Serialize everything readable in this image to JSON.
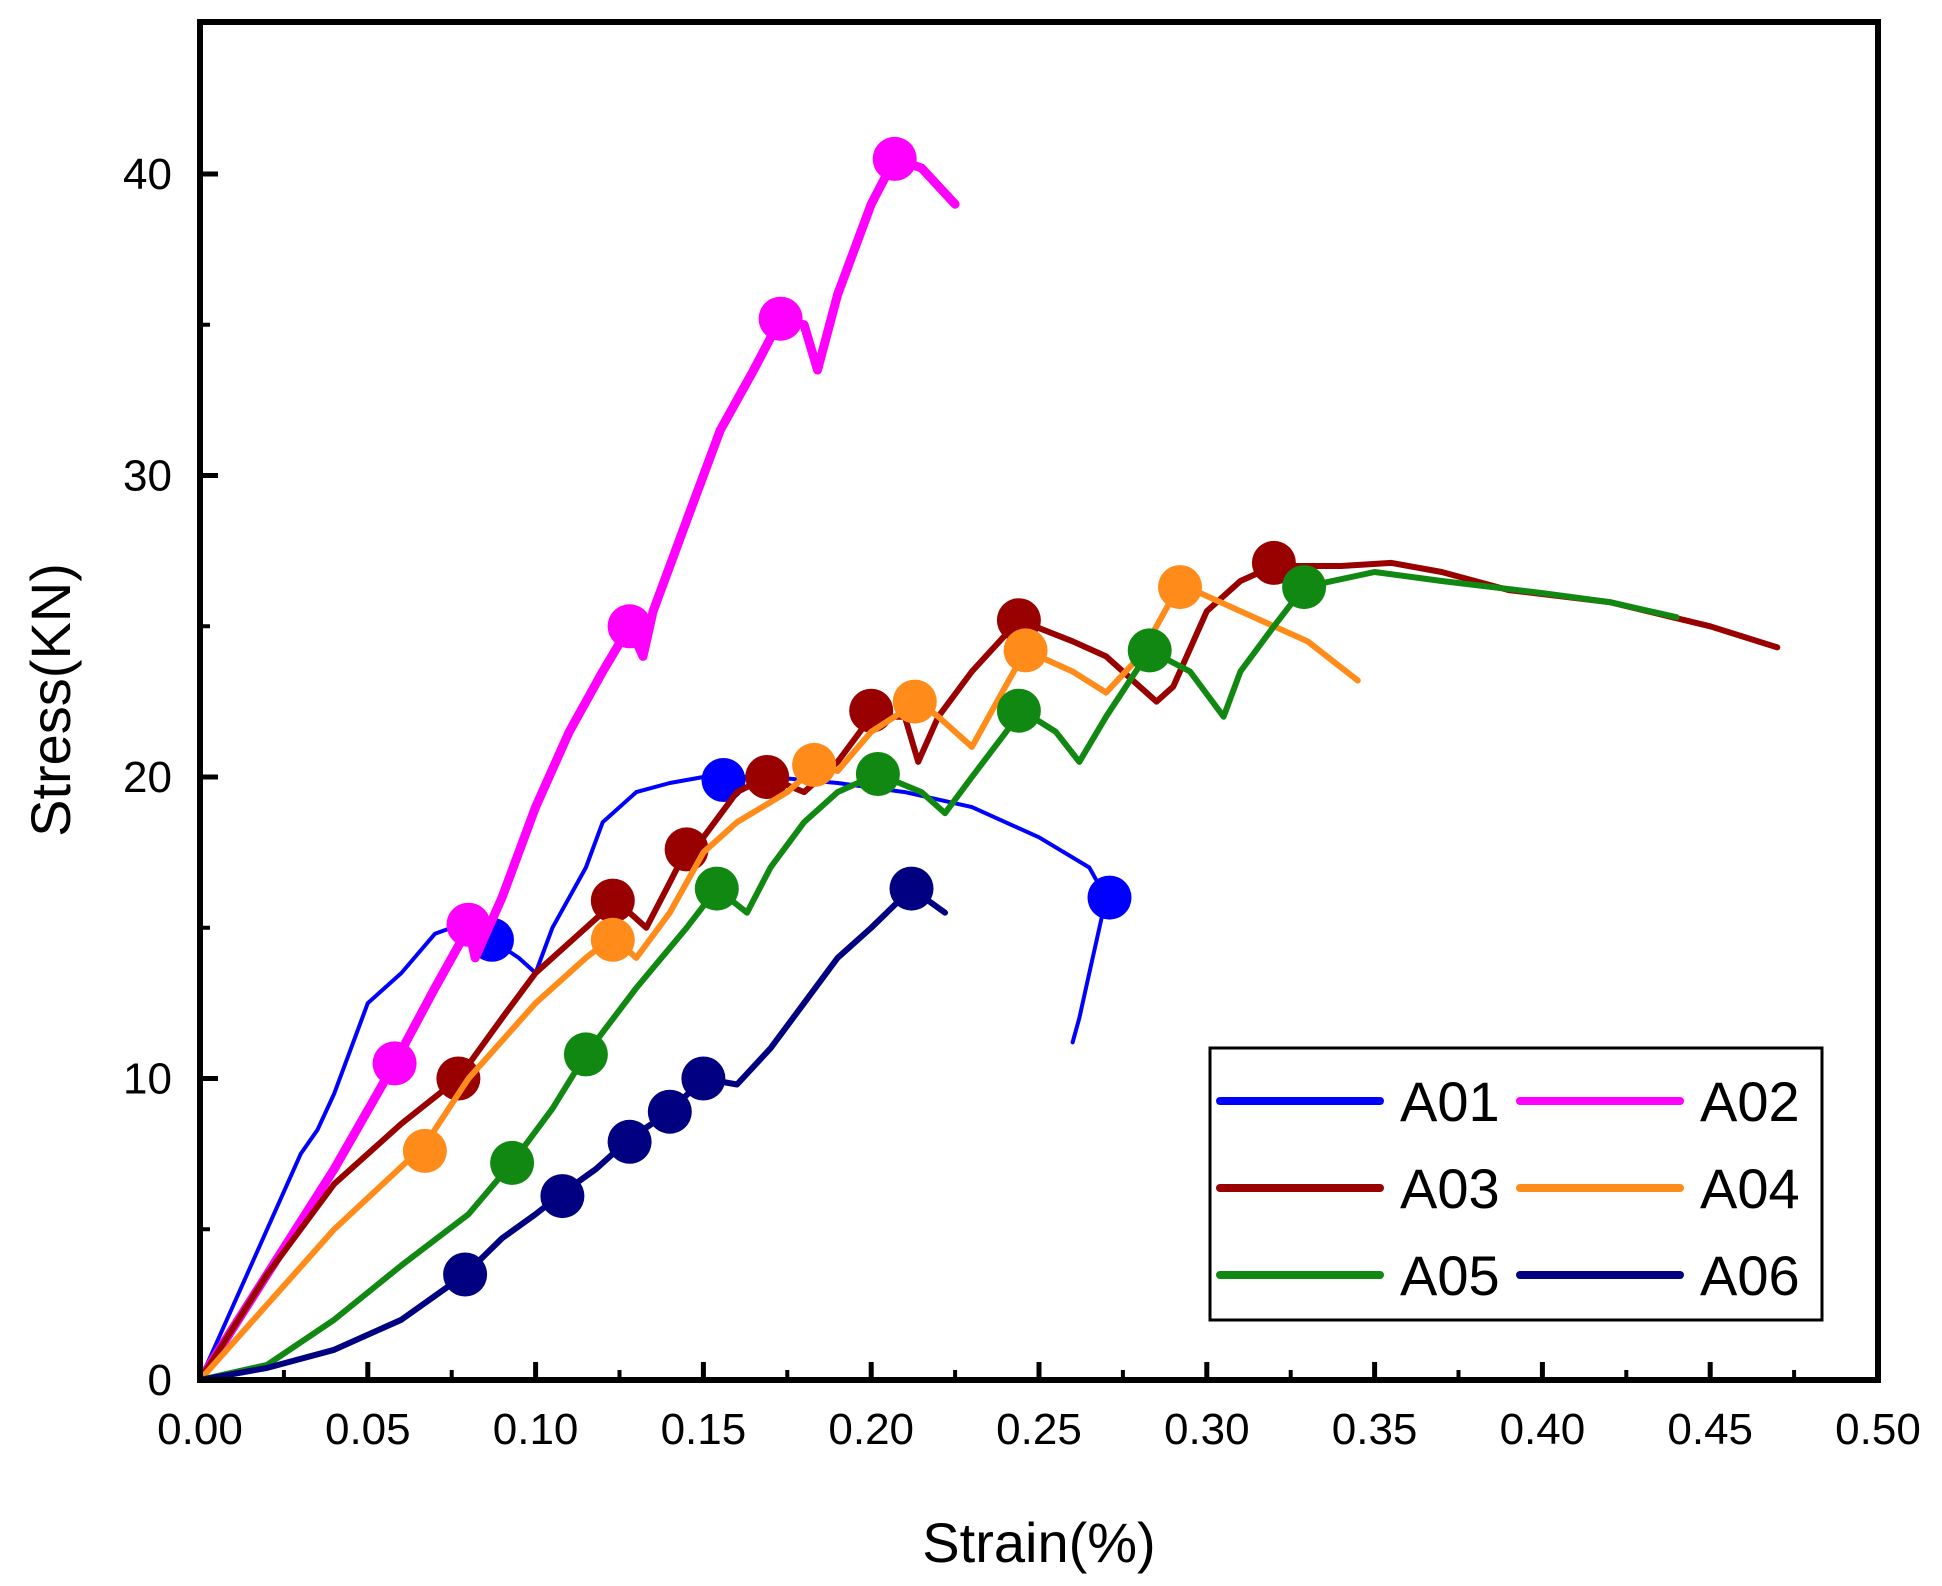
{
  "chart_data": {
    "type": "line",
    "title": "",
    "xlabel": "Strain(%)",
    "ylabel": "Stress(KN)",
    "xlim": [
      0,
      0.5
    ],
    "ylim": [
      0,
      45
    ],
    "xticks": [
      0.0,
      0.05,
      0.1,
      0.15,
      0.2,
      0.25,
      0.3,
      0.35,
      0.4,
      0.45,
      0.5
    ],
    "xtick_labels": [
      "0.00",
      "0.05",
      "0.10",
      "0.15",
      "0.20",
      "0.25",
      "0.30",
      "0.35",
      "0.40",
      "0.45",
      "0.50"
    ],
    "yticks": [
      0,
      10,
      20,
      30,
      40
    ],
    "ytick_labels": [
      "0",
      "10",
      "20",
      "30",
      "40"
    ],
    "grid": false,
    "legend_position": "bottom-right",
    "series": [
      {
        "name": "A01",
        "color": "#0000ff",
        "line_width": 4,
        "x": [
          0,
          0.01,
          0.02,
          0.03,
          0.035,
          0.04,
          0.05,
          0.06,
          0.07,
          0.08,
          0.087,
          0.095,
          0.1,
          0.105,
          0.115,
          0.12,
          0.13,
          0.14,
          0.15,
          0.156,
          0.17,
          0.19,
          0.21,
          0.23,
          0.25,
          0.265,
          0.27,
          0.268,
          0.265,
          0.262,
          0.26
        ],
        "y": [
          0,
          2.5,
          5,
          7.5,
          8.3,
          9.5,
          12.5,
          13.5,
          14.8,
          15.2,
          14.6,
          14.0,
          13.5,
          15,
          17,
          18.5,
          19.5,
          19.8,
          20,
          20,
          20,
          19.8,
          19.5,
          19.0,
          18,
          17,
          16,
          15,
          13.5,
          12,
          11.2
        ],
        "markers": [
          [
            0.087,
            14.6
          ],
          [
            0.156,
            19.9
          ],
          [
            0.271,
            16.0
          ]
        ]
      },
      {
        "name": "A02",
        "color": "#ff00ff",
        "line_width": 9,
        "x": [
          0,
          0.02,
          0.04,
          0.058,
          0.07,
          0.08,
          0.082,
          0.09,
          0.1,
          0.11,
          0.12,
          0.128,
          0.132,
          0.135,
          0.145,
          0.155,
          0.165,
          0.173,
          0.18,
          0.184,
          0.19,
          0.2,
          0.207,
          0.215,
          0.225
        ],
        "y": [
          0,
          3.5,
          7,
          10.5,
          13,
          15,
          14,
          16,
          19,
          21.5,
          23.5,
          25,
          24,
          25.5,
          28.5,
          31.5,
          33.5,
          35.2,
          35,
          33.5,
          36,
          39,
          40.5,
          40.2,
          39
        ],
        "markers": [
          [
            0.058,
            10.5
          ],
          [
            0.08,
            15.1
          ],
          [
            0.128,
            25.0
          ],
          [
            0.173,
            35.2
          ],
          [
            0.207,
            40.5
          ]
        ]
      },
      {
        "name": "A03",
        "color": "#990000",
        "line_width": 6,
        "x": [
          0,
          0.02,
          0.04,
          0.06,
          0.077,
          0.09,
          0.1,
          0.11,
          0.12,
          0.125,
          0.133,
          0.14,
          0.145,
          0.15,
          0.16,
          0.169,
          0.18,
          0.19,
          0.2,
          0.21,
          0.214,
          0.22,
          0.23,
          0.244,
          0.26,
          0.27,
          0.28,
          0.285,
          0.29,
          0.3,
          0.31,
          0.32,
          0.34,
          0.355,
          0.37,
          0.39,
          0.42,
          0.45,
          0.47
        ],
        "y": [
          0,
          3.5,
          6.5,
          8.5,
          10,
          12,
          13.5,
          14.5,
          15.5,
          15.8,
          15,
          16.5,
          17.6,
          18,
          19.5,
          20,
          19.5,
          20.5,
          22,
          22,
          20.5,
          22,
          23.5,
          25.2,
          24.5,
          24,
          23,
          22.5,
          23,
          25.5,
          26.5,
          27,
          27,
          27.1,
          26.8,
          26.2,
          25.8,
          25,
          24.3
        ],
        "markers": [
          [
            0.077,
            10.0
          ],
          [
            0.123,
            15.9
          ],
          [
            0.145,
            17.6
          ],
          [
            0.169,
            20.0
          ],
          [
            0.2,
            22.2
          ],
          [
            0.244,
            25.2
          ],
          [
            0.32,
            27.1
          ]
        ]
      },
      {
        "name": "A04",
        "color": "#ff8c1a",
        "line_width": 6,
        "x": [
          0,
          0.02,
          0.04,
          0.067,
          0.08,
          0.1,
          0.115,
          0.123,
          0.13,
          0.14,
          0.15,
          0.16,
          0.175,
          0.184,
          0.19,
          0.2,
          0.214,
          0.22,
          0.23,
          0.24,
          0.246,
          0.26,
          0.27,
          0.28,
          0.292,
          0.31,
          0.33,
          0.345
        ],
        "y": [
          0,
          2.5,
          5,
          7.8,
          10,
          12.5,
          14,
          14.7,
          14,
          15.5,
          17.5,
          18.5,
          19.5,
          20.4,
          20.2,
          21.5,
          22.5,
          22,
          21,
          23,
          24.2,
          23.5,
          22.8,
          24,
          26.4,
          25.5,
          24.5,
          23.2
        ],
        "markers": [
          [
            0.067,
            7.6
          ],
          [
            0.123,
            14.6
          ],
          [
            0.183,
            20.4
          ],
          [
            0.213,
            22.5
          ],
          [
            0.246,
            24.2
          ],
          [
            0.292,
            26.3
          ]
        ]
      },
      {
        "name": "A05",
        "color": "#118811",
        "line_width": 6,
        "x": [
          0,
          0.02,
          0.04,
          0.06,
          0.08,
          0.093,
          0.105,
          0.115,
          0.13,
          0.145,
          0.154,
          0.163,
          0.17,
          0.18,
          0.19,
          0.202,
          0.215,
          0.222,
          0.23,
          0.245,
          0.255,
          0.262,
          0.27,
          0.283,
          0.295,
          0.305,
          0.31,
          0.32,
          0.329,
          0.35,
          0.37,
          0.4,
          0.42,
          0.44
        ],
        "y": [
          0,
          0.5,
          2,
          3.8,
          5.5,
          7.2,
          9,
          10.8,
          13,
          15,
          16.3,
          15.5,
          17,
          18.5,
          19.5,
          20.1,
          19.5,
          18.8,
          20,
          22.2,
          21.5,
          20.5,
          22,
          24.2,
          23.5,
          22,
          23.5,
          25,
          26.3,
          26.8,
          26.5,
          26.1,
          25.8,
          25.3
        ],
        "markers": [
          [
            0.093,
            7.2
          ],
          [
            0.115,
            10.8
          ],
          [
            0.154,
            16.3
          ],
          [
            0.202,
            20.1
          ],
          [
            0.244,
            22.2
          ],
          [
            0.283,
            24.2
          ],
          [
            0.329,
            26.3
          ]
        ]
      },
      {
        "name": "A06",
        "color": "#000080",
        "line_width": 6,
        "x": [
          0,
          0.02,
          0.04,
          0.06,
          0.079,
          0.09,
          0.1,
          0.108,
          0.118,
          0.128,
          0.14,
          0.15,
          0.16,
          0.17,
          0.18,
          0.19,
          0.2,
          0.212,
          0.222
        ],
        "y": [
          0,
          0.4,
          1,
          2,
          3.5,
          4.7,
          5.5,
          6.2,
          7,
          8,
          8.9,
          10,
          9.8,
          11,
          12.5,
          14,
          15,
          16.3,
          15.5
        ],
        "markers": [
          [
            0.079,
            3.5
          ],
          [
            0.108,
            6.1
          ],
          [
            0.128,
            7.9
          ],
          [
            0.14,
            8.9
          ],
          [
            0.15,
            10.0
          ],
          [
            0.212,
            16.3
          ]
        ]
      }
    ]
  }
}
